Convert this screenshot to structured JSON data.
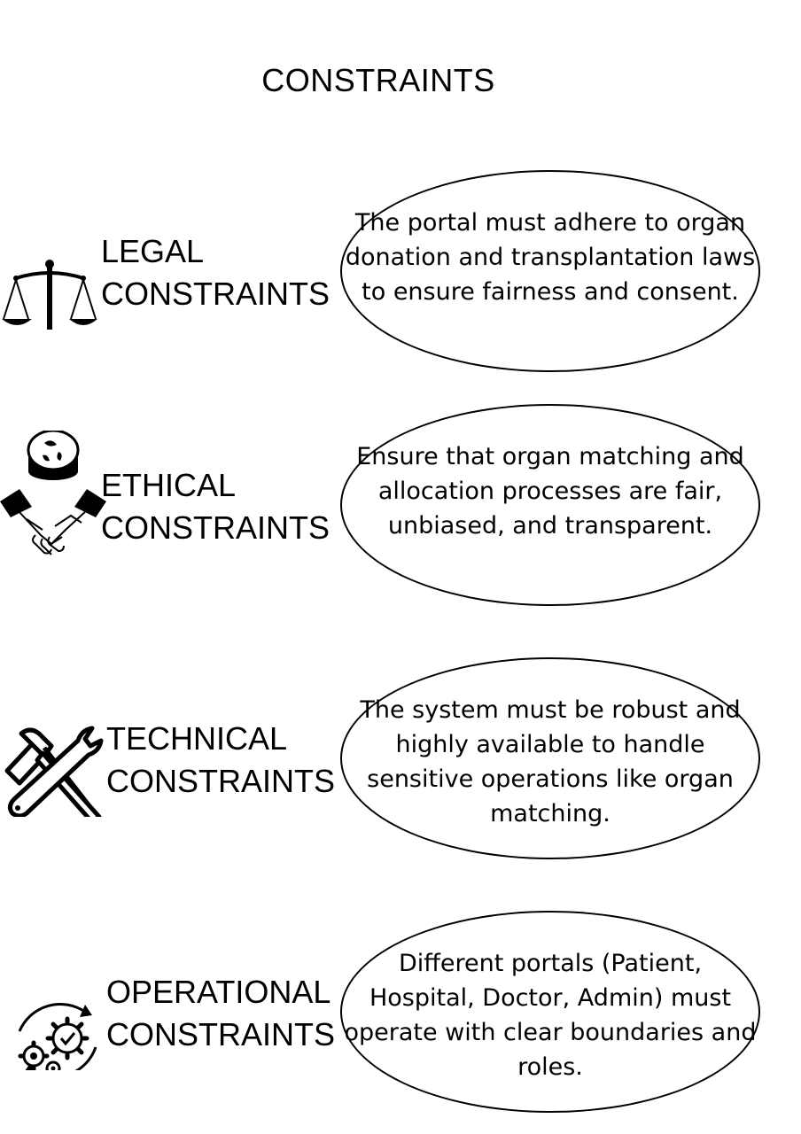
{
  "title": "CONSTRAINTS",
  "constraints": [
    {
      "label_line1": "LEGAL",
      "label_line2": "CONSTRAINTS",
      "icon": "scales-of-justice-icon",
      "description": "The portal must adhere to organ donation and transplantation laws to ensure fairness and consent."
    },
    {
      "label_line1": "ETHICAL",
      "label_line2": "CONSTRAINTS",
      "icon": "handshake-icon",
      "description": "Ensure that organ matching and allocation processes are fair, unbiased, and transparent."
    },
    {
      "label_line1": "TECHNICAL",
      "label_line2": "CONSTRAINTS",
      "icon": "tools-icon",
      "description": "The system must be robust and highly available to handle sensitive operations like organ matching."
    },
    {
      "label_line1": "OPERATIONAL",
      "label_line2": "CONSTRAINTS",
      "icon": "gears-icon",
      "description": "Different portals (Patient, Hospital, Doctor, Admin) must operate with clear boundaries and roles."
    }
  ]
}
